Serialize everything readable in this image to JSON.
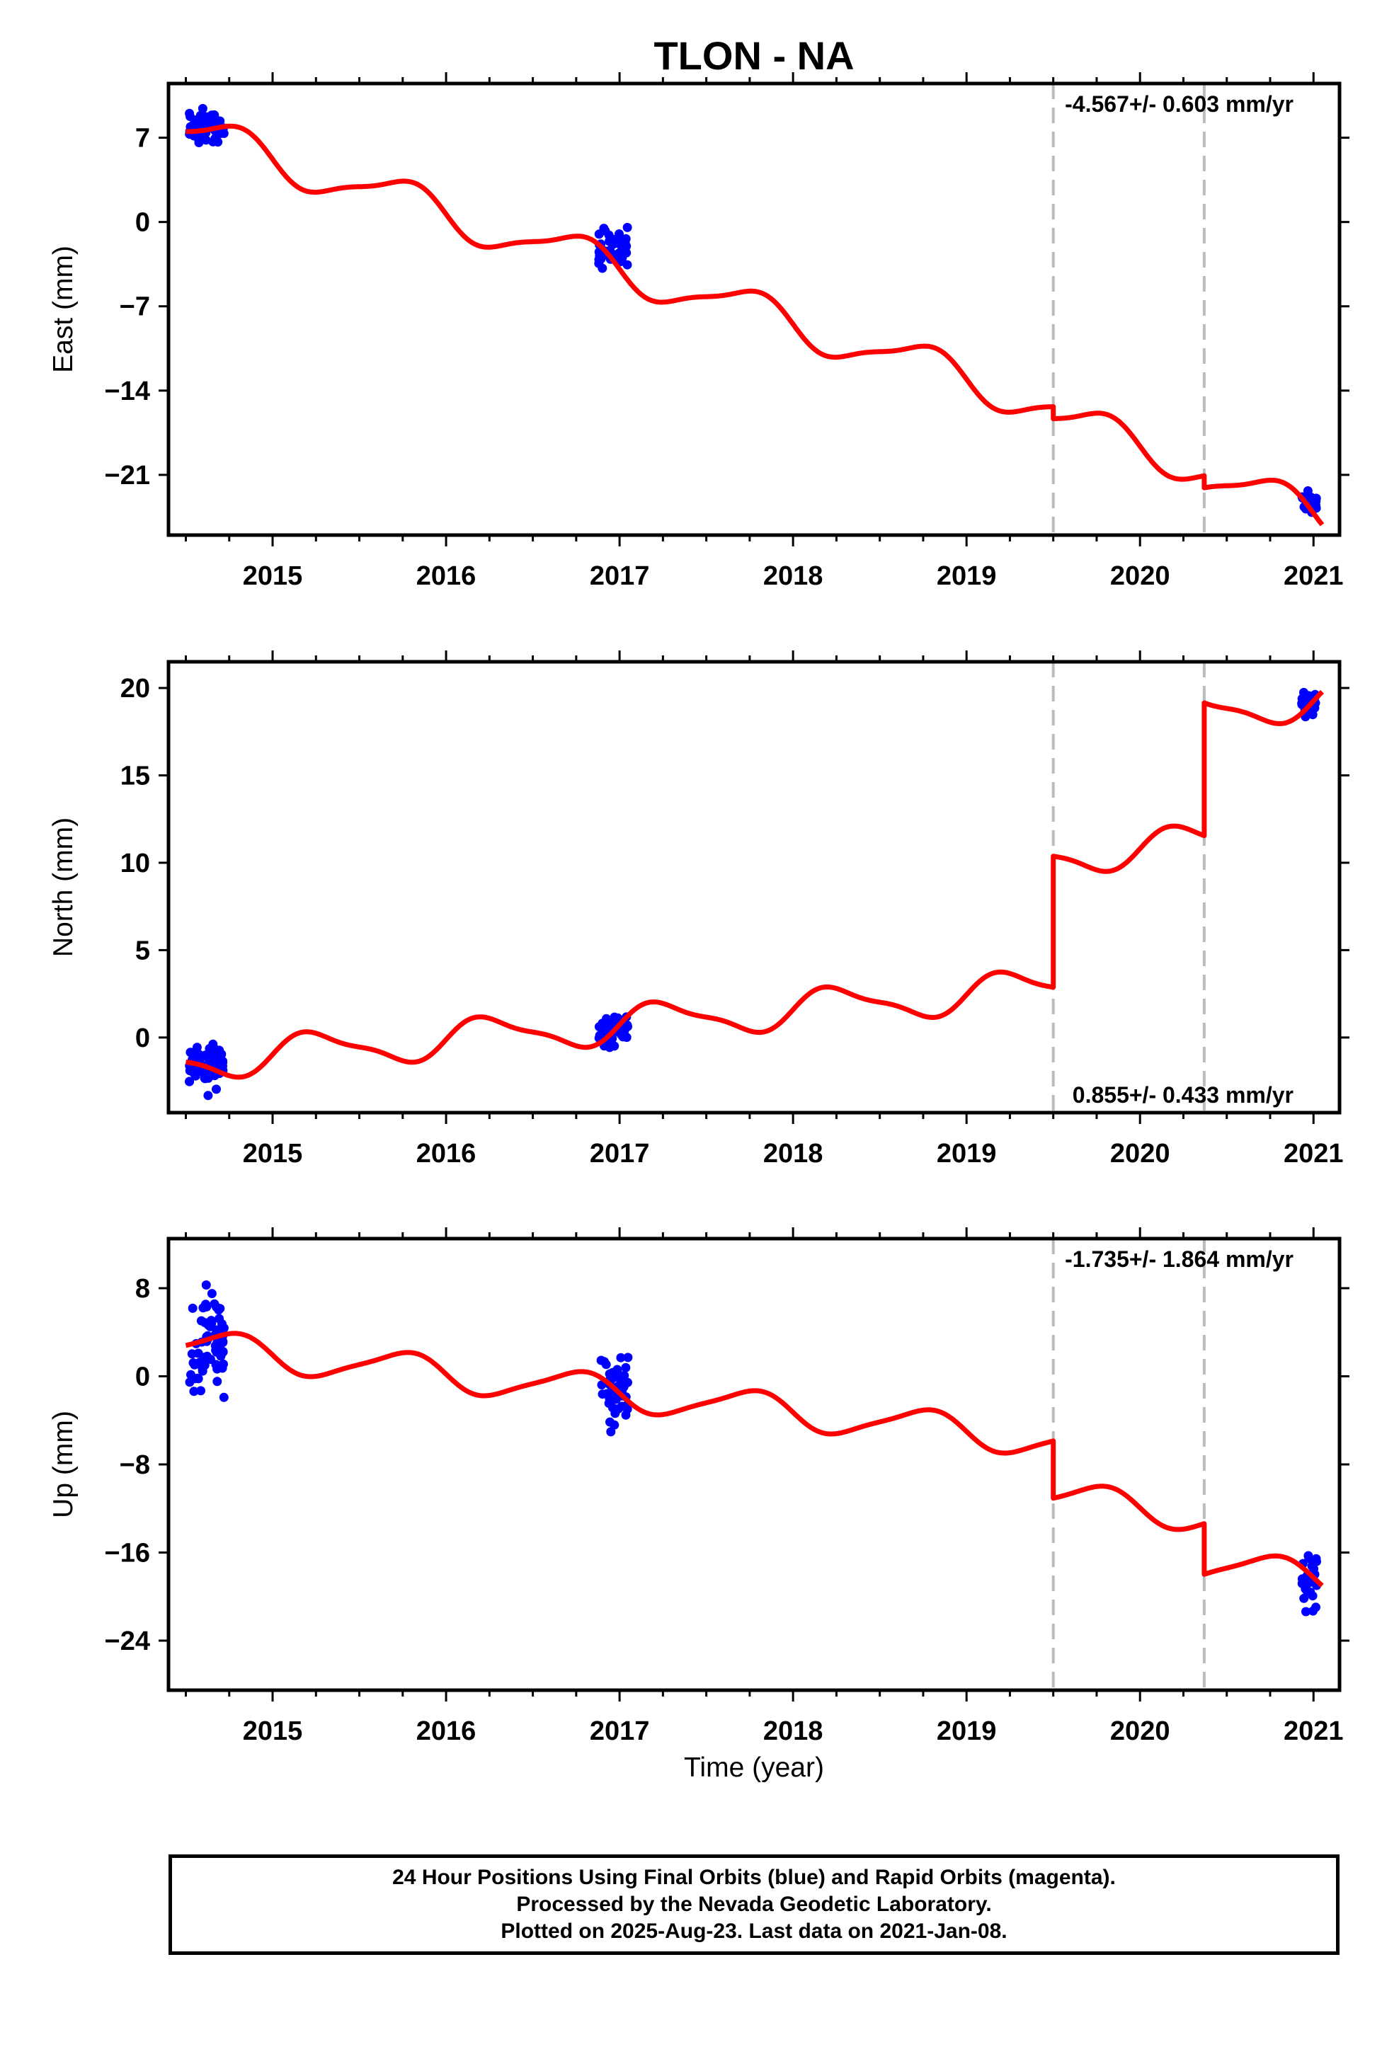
{
  "chart_data": {
    "title": "TLON - NA",
    "type": "scatter",
    "xlabel": "Time (year)",
    "xlim": [
      2014.4,
      2021.15
    ],
    "x_ticks": [
      2015,
      2016,
      2017,
      2018,
      2019,
      2020,
      2021
    ],
    "breaks": [
      2019.5,
      2020.37
    ],
    "legend": "none",
    "grid": false,
    "colors": {
      "data": "#0000ff",
      "model": "#ff0000",
      "break": "#bbbbbb"
    },
    "panels": [
      {
        "ylabel": "East (mm)",
        "ylim": [
          -26,
          11.5
        ],
        "y_ticks": [
          7,
          0,
          -7,
          -14,
          -21
        ],
        "rate_text": "-4.567+/- 0.603 mm/yr",
        "rate_position": "top-right",
        "model": {
          "start": 2014.5,
          "end": 2021.05,
          "slope": -4.567,
          "offset_at_start": 7.5,
          "annual_amplitude": 1.6,
          "annual_phase": 0.0,
          "semiannual_amplitude": 0.4,
          "semiannual_phase": 0.5,
          "steps": [
            {
              "x": 2019.5,
              "size": -1.0
            },
            {
              "x": 2020.37,
              "size": -1.0
            }
          ]
        },
        "clusters": [
          {
            "start": 2014.52,
            "end": 2014.72,
            "center": 7.8,
            "spread": 1.4,
            "n": 70
          },
          {
            "start": 2016.88,
            "end": 2017.05,
            "center": -2.2,
            "spread": 1.6,
            "n": 45
          },
          {
            "start": 2020.93,
            "end": 2021.02,
            "center": -23.3,
            "spread": 0.9,
            "n": 30
          }
        ]
      },
      {
        "ylabel": "North (mm)",
        "ylim": [
          -4.3,
          21.5
        ],
        "y_ticks": [
          20,
          15,
          10,
          5,
          0
        ],
        "rate_text": "0.855+/- 0.433 mm/yr",
        "rate_position": "bottom-right",
        "model": {
          "start": 2014.5,
          "end": 2021.05,
          "slope": 0.855,
          "offset_at_start": -1.4,
          "annual_amplitude": 1.0,
          "annual_phase": 0.5,
          "semiannual_amplitude": 0.3,
          "semiannual_phase": 0.0,
          "steps": [
            {
              "x": 2019.5,
              "size": 7.5
            },
            {
              "x": 2020.37,
              "size": 7.6
            }
          ]
        },
        "clusters": [
          {
            "start": 2014.52,
            "end": 2014.72,
            "center": -1.5,
            "spread": 1.2,
            "n": 70
          },
          {
            "start": 2016.88,
            "end": 2017.05,
            "center": 0.4,
            "spread": 1.0,
            "n": 45
          },
          {
            "start": 2020.93,
            "end": 2021.02,
            "center": 19.2,
            "spread": 0.9,
            "n": 30
          }
        ]
      },
      {
        "ylabel": "Up (mm)",
        "ylim": [
          -28.5,
          12.5
        ],
        "y_ticks": [
          8,
          0,
          -8,
          -16,
          -24
        ],
        "rate_text": "-1.735+/- 1.864 mm/yr",
        "rate_position": "top-right",
        "model": {
          "start": 2014.5,
          "end": 2021.05,
          "slope": -1.735,
          "offset_at_start": 2.8,
          "annual_amplitude": 1.5,
          "annual_phase": 0.0,
          "semiannual_amplitude": 0.3,
          "semiannual_phase": 0.5,
          "steps": [
            {
              "x": 2019.5,
              "size": -5.2
            },
            {
              "x": 2020.37,
              "size": -4.6
            }
          ]
        },
        "clusters": [
          {
            "start": 2014.52,
            "end": 2014.72,
            "center": 2.5,
            "spread": 5.0,
            "n": 70
          },
          {
            "start": 2016.88,
            "end": 2017.05,
            "center": -1.5,
            "spread": 3.5,
            "n": 45
          },
          {
            "start": 2020.93,
            "end": 2021.02,
            "center": -18.5,
            "spread": 3.0,
            "n": 30
          }
        ]
      }
    ]
  },
  "footer": {
    "line1": "24 Hour Positions Using Final Orbits (blue) and Rapid Orbits (magenta).",
    "line2": "Processed by the Nevada Geodetic Laboratory.",
    "line3": "Plotted on 2025-Aug-23. Last data on 2021-Jan-08."
  }
}
